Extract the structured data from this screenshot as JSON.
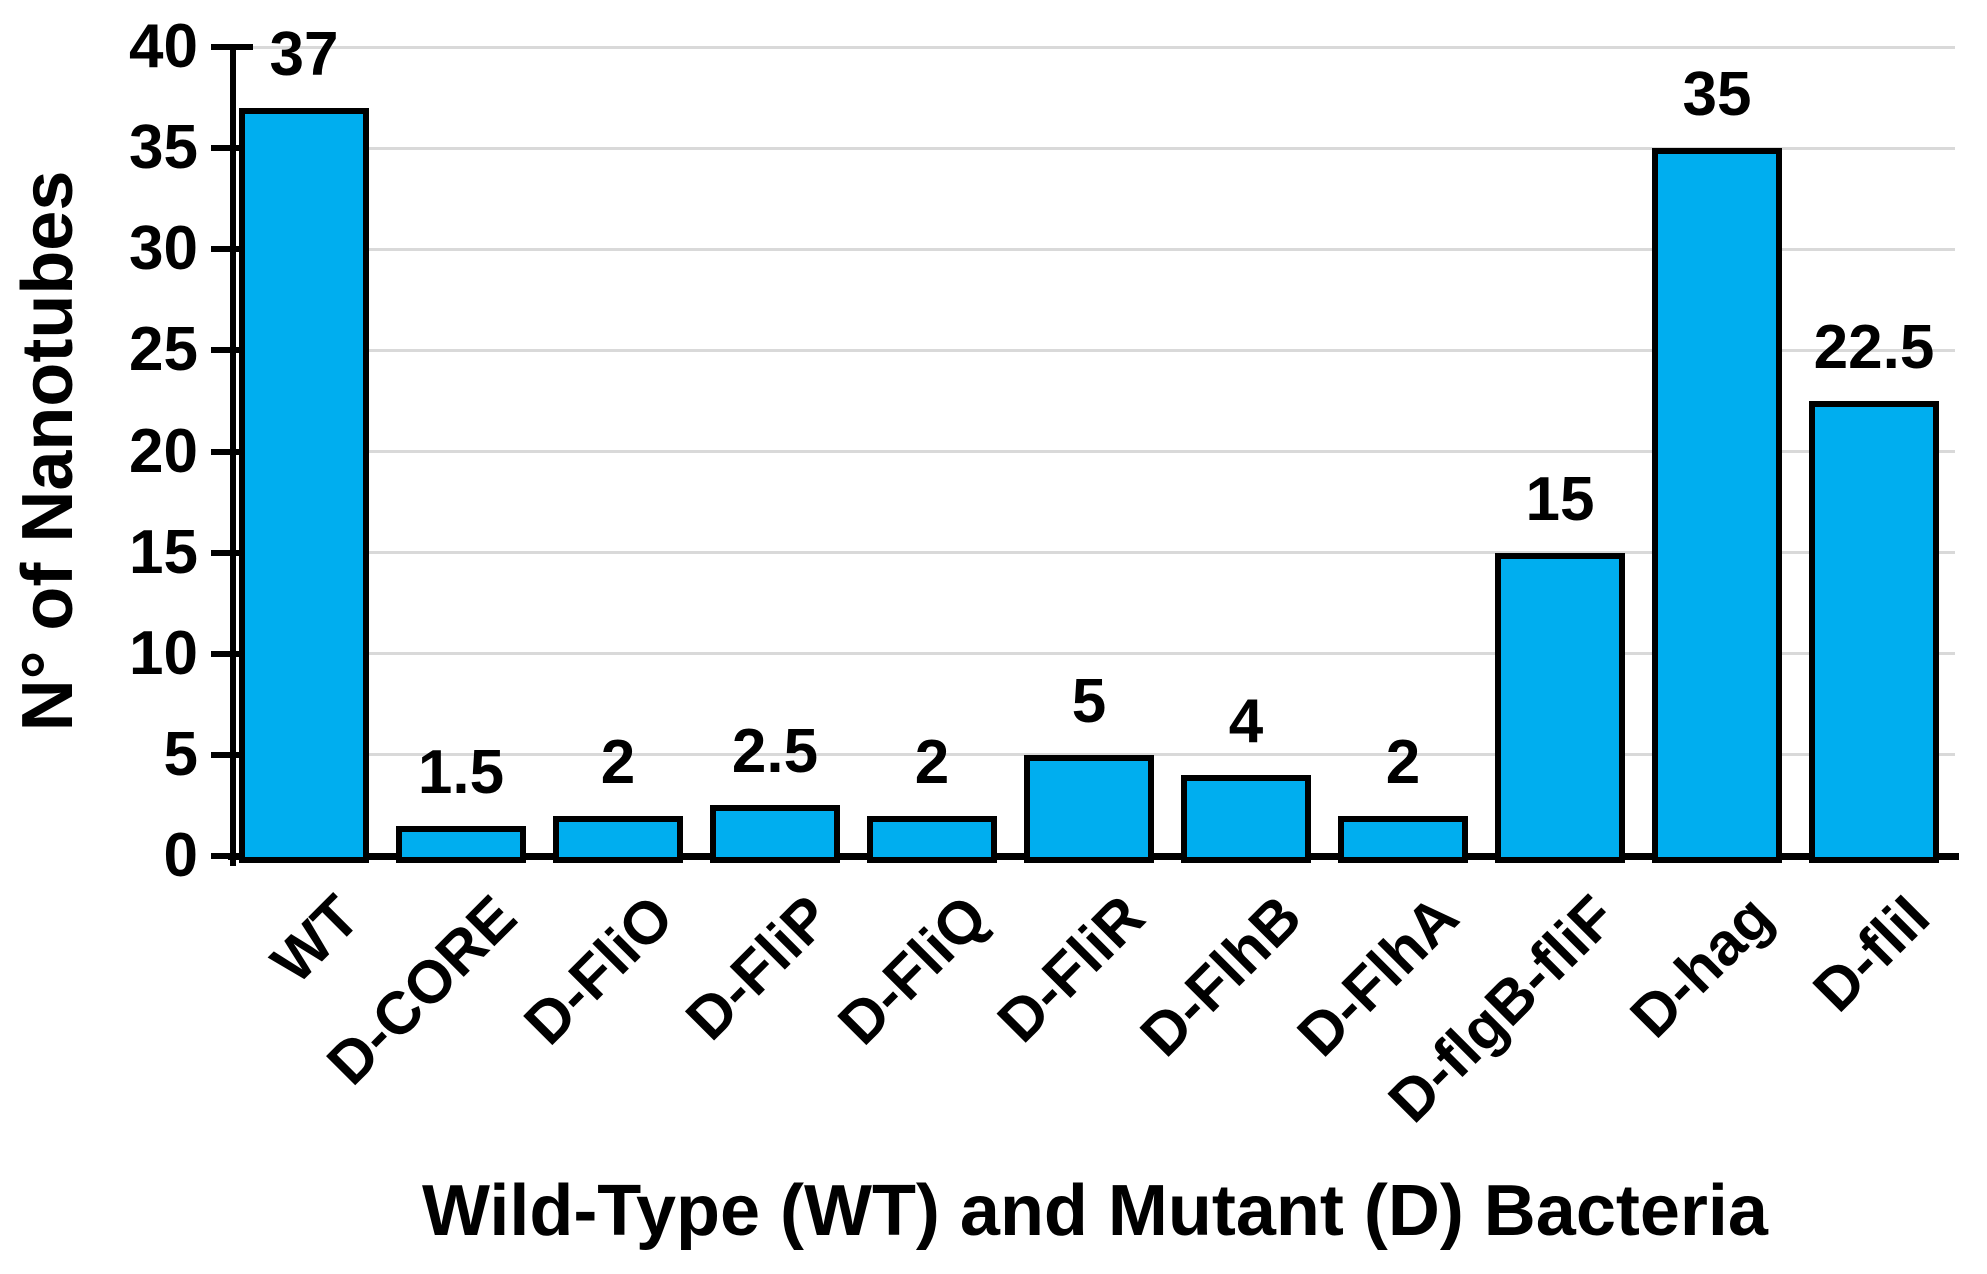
{
  "chart_data": {
    "type": "bar",
    "title": "",
    "categories": [
      "WT",
      "D-CORE",
      "D-FliO",
      "D-FliP",
      "D-FliQ",
      "D-FliR",
      "D-FlhB",
      "D-FlhA",
      "D-flgB-fliF",
      "D-hag",
      "D-fliI"
    ],
    "values": [
      37,
      1.5,
      2,
      2.5,
      2,
      5,
      4,
      2,
      15,
      35,
      22.5
    ],
    "bar_labels": [
      "37",
      "1.5",
      "2",
      "2.5",
      "2",
      "5",
      "4",
      "2",
      "15",
      "35",
      "22.5"
    ],
    "xlabel": "Wild-Type (WT) and Mutant (D) Bacteria",
    "ylabel": "N° of Nanotubes",
    "ylim": [
      0,
      40
    ],
    "ytick_interval": 5,
    "yticks": [
      "0",
      "5",
      "10",
      "15",
      "20",
      "25",
      "30",
      "35",
      "40"
    ],
    "grid": true,
    "legend": "none",
    "bar_color": "#00AEEF",
    "bar_border_color": "#000000",
    "gridline_color": "#D9D9D9",
    "axis_color": "#000000",
    "label_color": "#000000"
  }
}
